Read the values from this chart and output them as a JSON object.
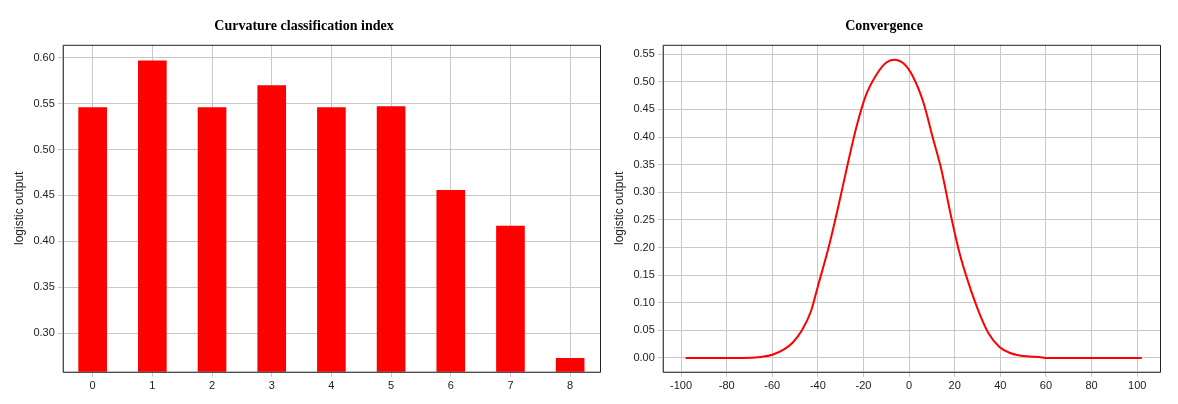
{
  "chart_data": [
    {
      "type": "bar",
      "title": "Curvature classification index",
      "ylabel": "logistic output",
      "categories": [
        "0",
        "1",
        "2",
        "3",
        "4",
        "5",
        "6",
        "7",
        "8"
      ],
      "values": [
        0.546,
        0.597,
        0.546,
        0.57,
        0.546,
        0.547,
        0.456,
        0.417,
        0.273
      ],
      "color": "#ff0000",
      "ylim": [
        0.258,
        0.614
      ],
      "yticks": [
        {
          "value": 0.3,
          "label": "0.30"
        },
        {
          "value": 0.35,
          "label": "0.35"
        },
        {
          "value": 0.4,
          "label": "0.40"
        },
        {
          "value": 0.45,
          "label": "0.45"
        },
        {
          "value": 0.5,
          "label": "0.50"
        },
        {
          "value": 0.55,
          "label": "0.55"
        },
        {
          "value": 0.6,
          "label": "0.60"
        }
      ],
      "grid": true
    },
    {
      "type": "line",
      "title": "Convergence",
      "ylabel": "logistic output",
      "marker": "none",
      "color": "#ff0000",
      "x": [
        -98,
        -73,
        -65,
        -60,
        -55,
        -51,
        -47,
        -43,
        -40,
        -35,
        -31,
        -27,
        -23,
        -19,
        -14,
        -10,
        -6.6,
        -2.4,
        1.6,
        6.3,
        10.3,
        14.2,
        18.2,
        22.1,
        26.1,
        30.9,
        34.8,
        39.6,
        44.3,
        49.1,
        58.5,
        60,
        102
      ],
      "values": [
        0,
        0,
        0.002,
        0.006,
        0.015,
        0.028,
        0.05,
        0.085,
        0.13,
        0.205,
        0.275,
        0.35,
        0.42,
        0.475,
        0.515,
        0.535,
        0.54,
        0.533,
        0.51,
        0.462,
        0.4,
        0.34,
        0.26,
        0.19,
        0.135,
        0.08,
        0.045,
        0.02,
        0.009,
        0.004,
        0.001,
        0,
        0
      ],
      "xlim": [
        -108,
        110
      ],
      "xticks": [
        -100,
        -80,
        -60,
        -40,
        -20,
        0,
        20,
        40,
        60,
        80,
        100
      ],
      "ylim": [
        -0.025,
        0.567
      ],
      "yticks": [
        {
          "value": 0,
          "label": "0.00"
        },
        {
          "value": 0.05,
          "label": "0.05"
        },
        {
          "value": 0.1,
          "label": "0.10"
        },
        {
          "value": 0.15,
          "label": "0.15"
        },
        {
          "value": 0.2,
          "label": "0.20"
        },
        {
          "value": 0.25,
          "label": "0.25"
        },
        {
          "value": 0.3,
          "label": "0.30"
        },
        {
          "value": 0.35,
          "label": "0.35"
        },
        {
          "value": 0.4,
          "label": "0.40"
        },
        {
          "value": 0.45,
          "label": "0.45"
        },
        {
          "value": 0.5,
          "label": "0.50"
        },
        {
          "value": 0.55,
          "label": "0.55"
        }
      ],
      "grid": true
    }
  ]
}
